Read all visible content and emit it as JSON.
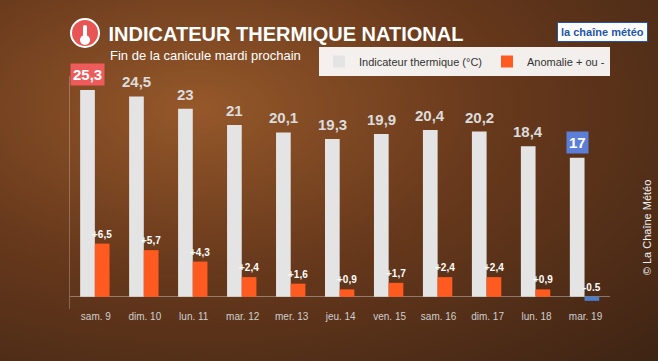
{
  "chart_data": {
    "type": "bar",
    "title": "INDICATEUR THERMIQUE NATIONAL",
    "subtitle": "Fin de la canicule mardi prochain",
    "categories": [
      "sam. 9",
      "dim. 10",
      "lun. 11",
      "mar. 12",
      "mer. 13",
      "jeu. 14",
      "ven. 15",
      "sam. 16",
      "dim. 17",
      "lun. 18",
      "mar. 19"
    ],
    "series": [
      {
        "name": "Indicateur thermique (°C)",
        "color": "#e4e4e4",
        "values": [
          25.3,
          24.5,
          23,
          21,
          20.1,
          19.3,
          19.9,
          20.4,
          20.2,
          18.4,
          17
        ],
        "value_labels": [
          "25,3",
          "24,5",
          "23",
          "21",
          "20,1",
          "19,3",
          "19,9",
          "20,4",
          "20,2",
          "18,4",
          "17"
        ]
      },
      {
        "name": "Anomalie + ou -",
        "colors": [
          "#ff5a1f",
          "#ff5a1f",
          "#ff5a1f",
          "#ff5a1f",
          "#ff5a1f",
          "#ff5a1f",
          "#ff5a1f",
          "#ff5a1f",
          "#ff5a1f",
          "#ff5a1f",
          "#4a7fd0"
        ],
        "values": [
          6.5,
          5.7,
          4.3,
          2.4,
          1.6,
          0.9,
          1.7,
          2.4,
          2.4,
          0.9,
          -0.5
        ],
        "value_labels": [
          "+6,5",
          "+5,7",
          "+4,3",
          "+2,4",
          "+1,6",
          "+0,9",
          "+1,7",
          "+2,4",
          "+2,4",
          "+0,9",
          "-0.5"
        ]
      }
    ],
    "ylim": [
      -1.5,
      27
    ],
    "data_labels": true,
    "tick_labels": "x",
    "grid": false,
    "legend": "top right",
    "annotations": [
      "la chaîne météo",
      "© La Chaîne Météo"
    ]
  }
}
